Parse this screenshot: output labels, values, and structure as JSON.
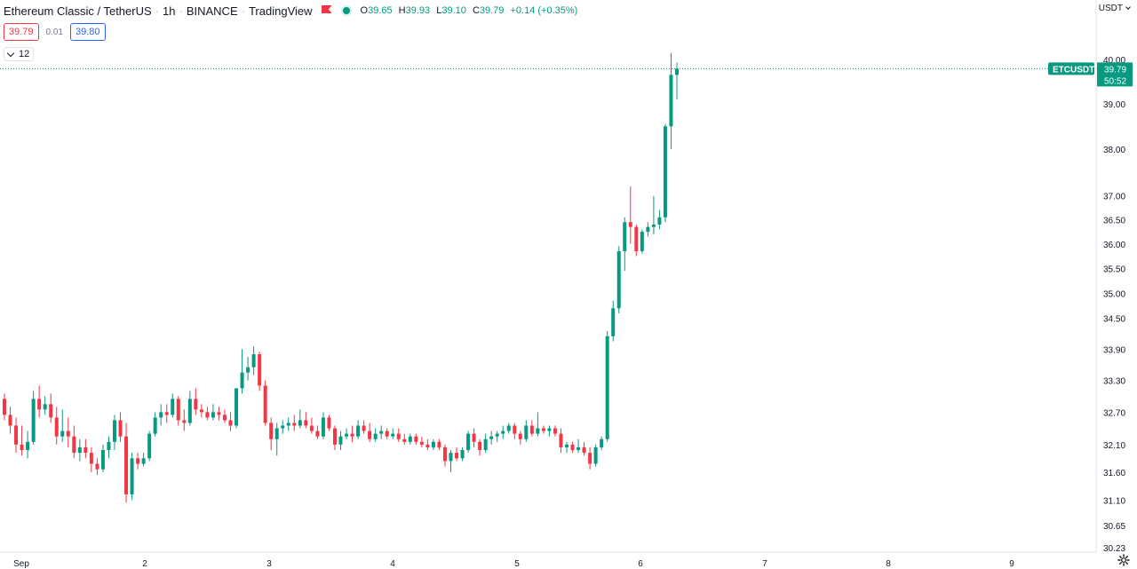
{
  "header": {
    "symbol_name": "Ethereum Classic / TetherUS",
    "interval": "1h",
    "exchange": "BINANCE",
    "source": "TradingView",
    "ohlc": {
      "o_label": "O",
      "o_value": "39.65",
      "h_label": "H",
      "h_value": "39.93",
      "l_label": "L",
      "l_value": "39.10",
      "c_label": "C",
      "c_value": "39.79",
      "change": "+0.14 (+0.35%)"
    }
  },
  "trade": {
    "sell": "39.79",
    "spread": "0.01",
    "buy": "39.80"
  },
  "indicators": {
    "count": "12"
  },
  "axis": {
    "currency": "USDT"
  },
  "chart_data": {
    "type": "candlestick",
    "symbol": "ETCUSDT",
    "last_price": "39.79",
    "countdown": "50:52",
    "y_scale": "log",
    "y_ticks": [
      "40.00",
      "39.00",
      "38.00",
      "37.00",
      "36.50",
      "36.00",
      "35.50",
      "35.00",
      "34.50",
      "33.90",
      "33.30",
      "32.70",
      "32.10",
      "31.60",
      "31.10",
      "30.65",
      "30.23"
    ],
    "x_ticks": [
      "Sep",
      "2",
      "3",
      "4",
      "5",
      "6",
      "7",
      "8",
      "9"
    ],
    "colors": {
      "up": "#089981",
      "down": "#f23645",
      "last_line": "#089981"
    },
    "candles": [
      [
        32.95,
        33.05,
        32.55,
        32.65
      ],
      [
        32.65,
        32.8,
        32.3,
        32.45
      ],
      [
        32.45,
        32.6,
        31.95,
        32.1
      ],
      [
        32.1,
        32.45,
        31.9,
        32.0
      ],
      [
        32.0,
        32.35,
        31.85,
        32.15
      ],
      [
        32.15,
        33.1,
        32.1,
        32.95
      ],
      [
        32.95,
        33.2,
        32.6,
        32.75
      ],
      [
        32.75,
        33.0,
        32.65,
        32.85
      ],
      [
        32.85,
        33.05,
        32.5,
        32.6
      ],
      [
        32.6,
        32.8,
        32.1,
        32.25
      ],
      [
        32.25,
        32.75,
        32.15,
        32.35
      ],
      [
        32.35,
        32.6,
        32.05,
        32.25
      ],
      [
        32.25,
        32.45,
        31.85,
        31.95
      ],
      [
        31.95,
        32.2,
        31.8,
        32.05
      ],
      [
        32.05,
        32.2,
        31.85,
        31.95
      ],
      [
        31.95,
        32.05,
        31.6,
        31.75
      ],
      [
        31.75,
        31.85,
        31.55,
        31.65
      ],
      [
        31.65,
        32.1,
        31.6,
        32.0
      ],
      [
        32.0,
        32.25,
        31.85,
        32.15
      ],
      [
        32.15,
        32.65,
        32.0,
        32.55
      ],
      [
        32.55,
        32.7,
        32.15,
        32.25
      ],
      [
        32.25,
        32.5,
        31.05,
        31.2
      ],
      [
        31.2,
        31.95,
        31.1,
        31.85
      ],
      [
        31.85,
        31.95,
        31.65,
        31.75
      ],
      [
        31.75,
        31.95,
        31.7,
        31.85
      ],
      [
        31.85,
        32.35,
        31.8,
        32.3
      ],
      [
        32.3,
        32.7,
        32.25,
        32.6
      ],
      [
        32.6,
        32.85,
        32.45,
        32.7
      ],
      [
        32.7,
        32.85,
        32.5,
        32.65
      ],
      [
        32.65,
        33.05,
        32.6,
        32.95
      ],
      [
        32.95,
        33.0,
        32.45,
        32.55
      ],
      [
        32.55,
        32.75,
        32.35,
        32.5
      ],
      [
        32.5,
        33.1,
        32.45,
        32.95
      ],
      [
        32.95,
        33.15,
        32.65,
        32.75
      ],
      [
        32.75,
        32.85,
        32.6,
        32.7
      ],
      [
        32.7,
        32.8,
        32.55,
        32.6
      ],
      [
        32.6,
        32.85,
        32.55,
        32.7
      ],
      [
        32.7,
        32.8,
        32.55,
        32.65
      ],
      [
        32.65,
        32.75,
        32.5,
        32.55
      ],
      [
        32.55,
        32.7,
        32.35,
        32.45
      ],
      [
        32.45,
        33.1,
        32.4,
        33.15
      ],
      [
        33.15,
        33.9,
        33.05,
        33.45
      ],
      [
        33.45,
        33.75,
        33.3,
        33.55
      ],
      [
        33.55,
        33.95,
        33.4,
        33.8
      ],
      [
        33.8,
        33.85,
        33.1,
        33.2
      ],
      [
        33.2,
        33.3,
        32.45,
        32.5
      ],
      [
        32.5,
        32.6,
        32.0,
        32.2
      ],
      [
        32.2,
        32.5,
        31.9,
        32.4
      ],
      [
        32.4,
        32.55,
        32.3,
        32.45
      ],
      [
        32.45,
        32.6,
        32.35,
        32.5
      ],
      [
        32.5,
        32.65,
        32.35,
        32.45
      ],
      [
        32.45,
        32.75,
        32.4,
        32.55
      ],
      [
        32.55,
        32.7,
        32.4,
        32.45
      ],
      [
        32.45,
        32.6,
        32.3,
        32.35
      ],
      [
        32.35,
        32.45,
        32.2,
        32.25
      ],
      [
        32.25,
        32.7,
        32.2,
        32.6
      ],
      [
        32.6,
        32.65,
        32.35,
        32.4
      ],
      [
        32.4,
        32.45,
        32.0,
        32.1
      ],
      [
        32.1,
        32.35,
        32.0,
        32.25
      ],
      [
        32.25,
        32.4,
        32.2,
        32.3
      ],
      [
        32.3,
        32.45,
        32.15,
        32.25
      ],
      [
        32.25,
        32.55,
        32.2,
        32.45
      ],
      [
        32.45,
        32.55,
        32.3,
        32.35
      ],
      [
        32.35,
        32.5,
        32.15,
        32.2
      ],
      [
        32.2,
        32.4,
        32.15,
        32.3
      ],
      [
        32.3,
        32.45,
        32.2,
        32.35
      ],
      [
        32.35,
        32.4,
        32.2,
        32.25
      ],
      [
        32.25,
        32.4,
        32.2,
        32.3
      ],
      [
        32.3,
        32.4,
        32.15,
        32.2
      ],
      [
        32.2,
        32.3,
        32.1,
        32.15
      ],
      [
        32.15,
        32.3,
        32.1,
        32.25
      ],
      [
        32.25,
        32.3,
        32.1,
        32.15
      ],
      [
        32.15,
        32.25,
        32.05,
        32.1
      ],
      [
        32.1,
        32.2,
        32.0,
        32.05
      ],
      [
        32.05,
        32.2,
        32.0,
        32.15
      ],
      [
        32.15,
        32.2,
        32.0,
        32.05
      ],
      [
        32.05,
        32.1,
        31.7,
        31.8
      ],
      [
        31.8,
        32.0,
        31.6,
        31.95
      ],
      [
        31.95,
        32.05,
        31.8,
        31.85
      ],
      [
        31.85,
        32.05,
        31.8,
        32.0
      ],
      [
        32.0,
        32.35,
        31.95,
        32.3
      ],
      [
        32.3,
        32.4,
        32.05,
        32.15
      ],
      [
        32.15,
        32.2,
        31.9,
        32.0
      ],
      [
        32.0,
        32.3,
        31.95,
        32.2
      ],
      [
        32.2,
        32.35,
        32.1,
        32.25
      ],
      [
        32.25,
        32.35,
        32.15,
        32.3
      ],
      [
        32.3,
        32.45,
        32.2,
        32.35
      ],
      [
        32.35,
        32.5,
        32.3,
        32.45
      ],
      [
        32.45,
        32.5,
        32.2,
        32.3
      ],
      [
        32.3,
        32.35,
        32.1,
        32.2
      ],
      [
        32.2,
        32.55,
        32.15,
        32.45
      ],
      [
        32.45,
        32.55,
        32.25,
        32.3
      ],
      [
        32.3,
        32.7,
        32.25,
        32.4
      ],
      [
        32.4,
        32.45,
        32.3,
        32.35
      ],
      [
        32.35,
        32.45,
        32.25,
        32.4
      ],
      [
        32.4,
        32.45,
        32.25,
        32.3
      ],
      [
        32.3,
        32.4,
        31.95,
        32.05
      ],
      [
        32.05,
        32.15,
        31.95,
        32.1
      ],
      [
        32.1,
        32.15,
        31.95,
        32.0
      ],
      [
        32.0,
        32.2,
        31.95,
        32.05
      ],
      [
        32.05,
        32.15,
        31.9,
        31.95
      ],
      [
        31.95,
        32.05,
        31.65,
        31.75
      ],
      [
        31.75,
        32.1,
        31.7,
        32.05
      ],
      [
        32.05,
        32.25,
        32.0,
        32.2
      ],
      [
        32.2,
        34.25,
        32.15,
        34.15
      ],
      [
        34.15,
        34.85,
        34.05,
        34.7
      ],
      [
        34.7,
        35.95,
        34.6,
        35.85
      ],
      [
        35.85,
        36.55,
        35.45,
        36.45
      ],
      [
        36.45,
        37.2,
        36.0,
        36.35
      ],
      [
        36.35,
        36.4,
        35.75,
        35.85
      ],
      [
        35.85,
        36.3,
        35.8,
        36.25
      ],
      [
        36.25,
        36.45,
        36.15,
        36.35
      ],
      [
        36.35,
        37.0,
        36.2,
        36.4
      ],
      [
        36.4,
        36.7,
        36.3,
        36.55
      ],
      [
        36.55,
        38.55,
        36.45,
        38.5
      ],
      [
        38.5,
        40.15,
        38.0,
        39.65
      ],
      [
        39.65,
        39.93,
        39.1,
        39.79
      ]
    ]
  }
}
